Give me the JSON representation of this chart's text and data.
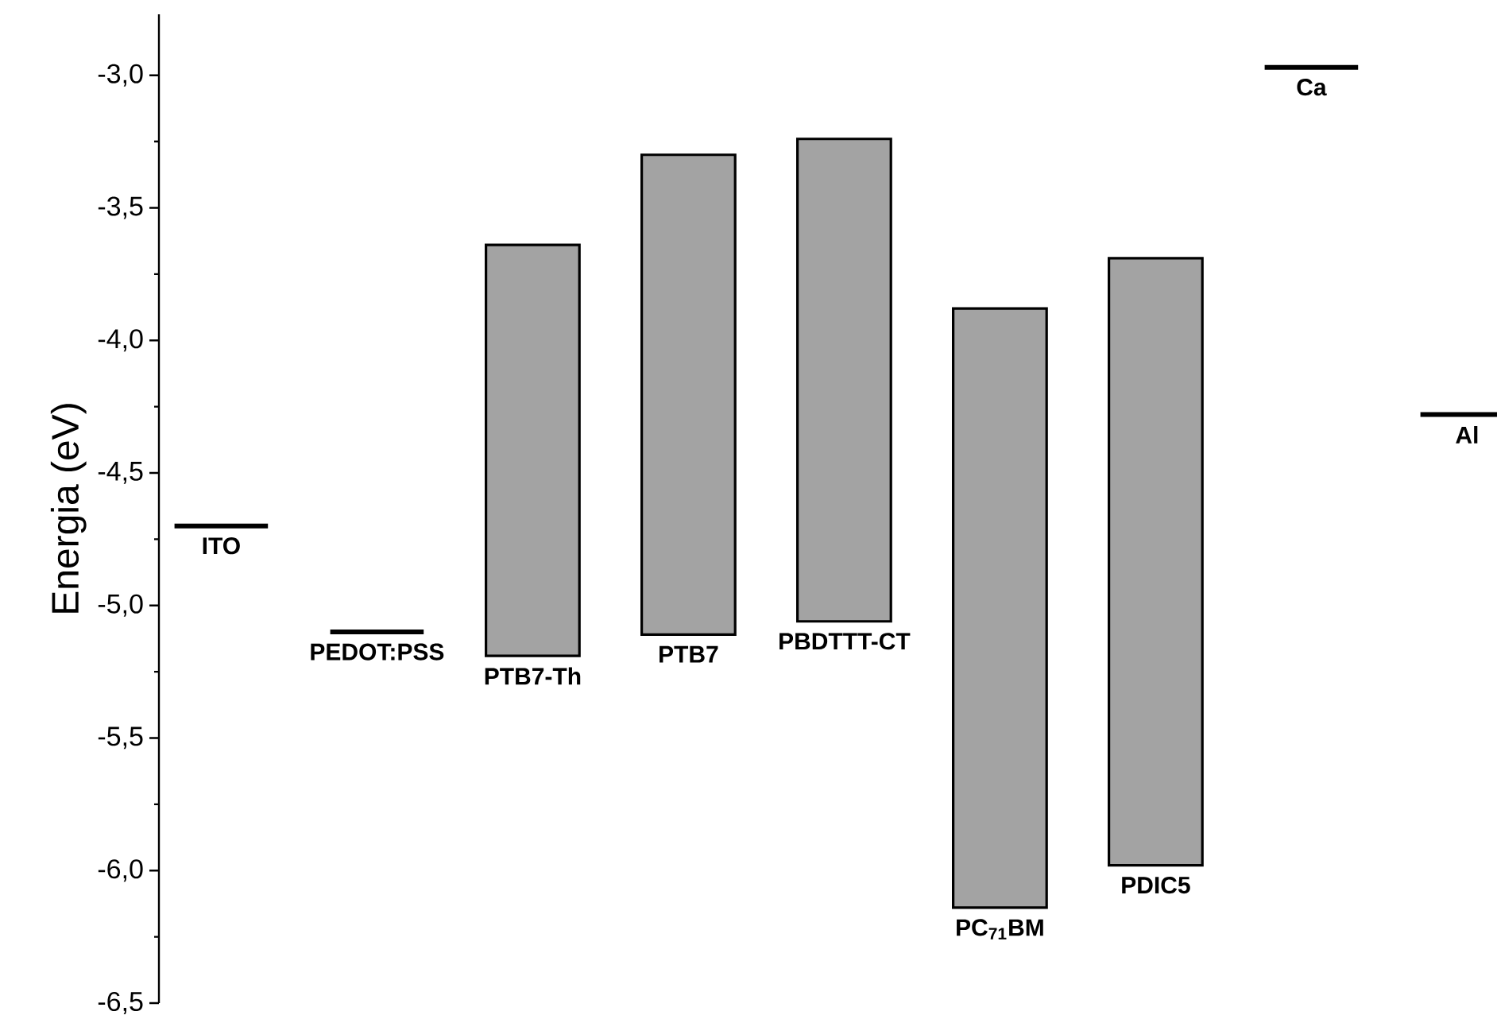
{
  "chart_data": {
    "type": "bar",
    "ylabel": "Energia (eV)",
    "categories": [
      "ITO",
      "PEDOT:PSS",
      "PTB7-Th",
      "PTB7",
      "PBDTTT-CT",
      "PC$_{71}$BM",
      "PDIC5",
      "Ca",
      "Al"
    ],
    "series": [
      {
        "colors": [
          "#000000",
          "#000000",
          "#a3a3a3",
          "#a3a3a3",
          "#a3a3a3",
          "#a3a3a3",
          "#a3a3a3",
          "#000000",
          "#000000"
        ],
        "values": [
          0,
          0,
          1.55,
          1.81,
          1.82,
          2.26,
          2.29,
          0,
          0
        ],
        "base": [
          -4.7,
          -5.1,
          -5.19,
          -5.11,
          -5.06,
          -6.14,
          -5.98,
          -2.97,
          -4.28
        ]
      }
    ],
    "ylim": [
      -6.5,
      -2.77
    ],
    "yticks": [
      {
        "value": -6.5,
        "label": "-6,5"
      },
      {
        "value": -6.0,
        "label": "-6,0"
      },
      {
        "value": -5.5,
        "label": "-5,5"
      },
      {
        "value": -5.0,
        "label": "-5,0"
      },
      {
        "value": -4.5,
        "label": "-4,5"
      },
      {
        "value": -4.0,
        "label": "-4,0"
      },
      {
        "value": -3.5,
        "label": "-3,5"
      },
      {
        "value": -3.0,
        "label": "-3,0"
      }
    ],
    "tick_labels": "y",
    "grid": false
  }
}
